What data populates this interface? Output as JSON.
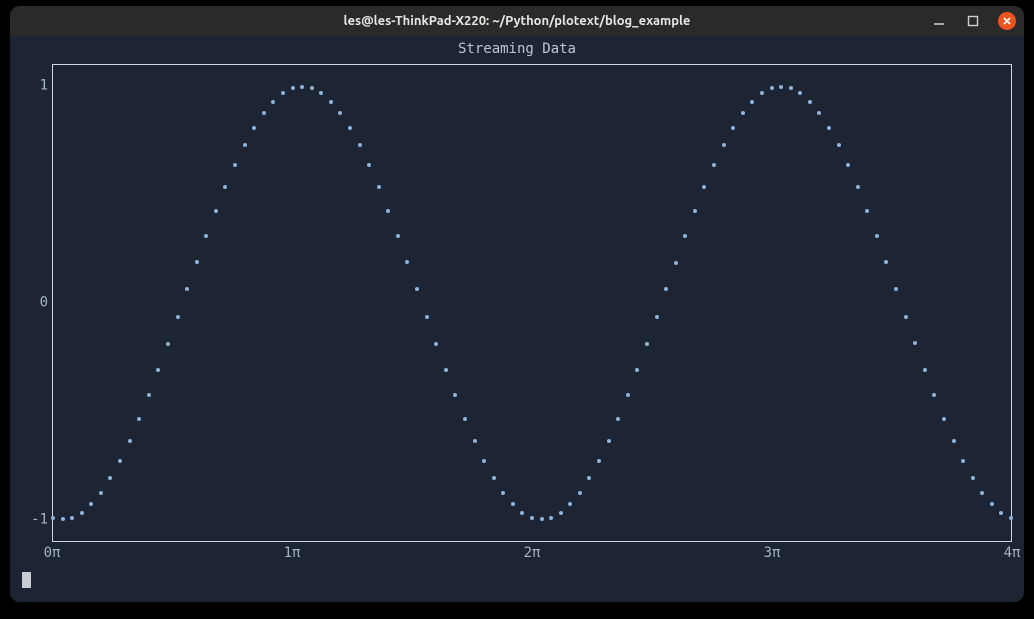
{
  "window": {
    "title": "les@les-ThinkPad-X220: ~/Python/plotext/blog_example"
  },
  "chart": {
    "type": "scatter",
    "title": "Streaming Data",
    "title_color": "#bcc6d2",
    "title_fontsize": 14,
    "background_color": "#1d2433",
    "border_color": "#cfd6de",
    "text_color": "#a5b4c4",
    "point_color": "#8fb3d9",
    "point_radius": 2,
    "xlim": [
      0,
      12.566
    ],
    "ylim": [
      -1.1,
      1.1
    ],
    "yticks": [
      {
        "value": 1,
        "label": "1"
      },
      {
        "value": 0,
        "label": "0"
      },
      {
        "value": -1,
        "label": "-1"
      }
    ],
    "xticks": [
      {
        "value": 0,
        "label": "0π"
      },
      {
        "value": 3.1416,
        "label": "1π"
      },
      {
        "value": 6.2832,
        "label": "2π"
      },
      {
        "value": 9.4248,
        "label": "3π"
      },
      {
        "value": 12.566,
        "label": "4π"
      }
    ],
    "phase": -1.6965,
    "n_points": 100,
    "fontsize": 14
  }
}
